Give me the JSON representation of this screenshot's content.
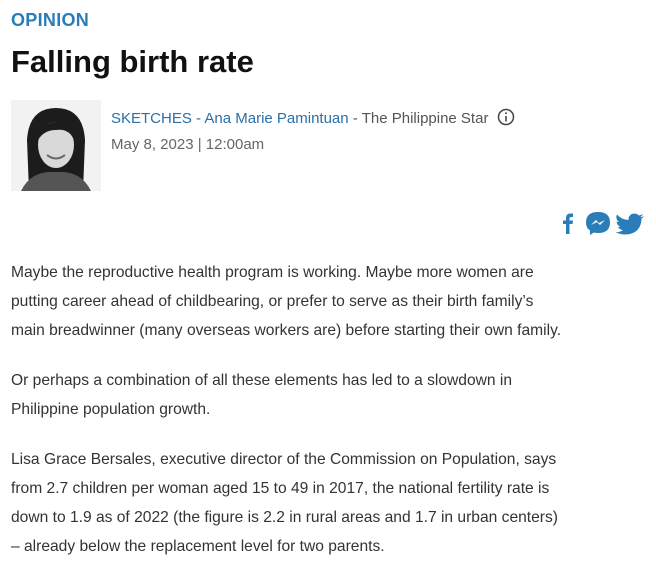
{
  "section": "OPINION",
  "title": "Falling birth rate",
  "byline": {
    "column": "SKETCHES",
    "separator": "-",
    "author": "Ana Marie Pamintuan",
    "publication": "The Philippine Star",
    "date": "May 8, 2023 | 12:00am"
  },
  "paragraphs": [
    [
      "Maybe the reproductive health program is working. Maybe more women are",
      "putting career ahead of childbearing, or prefer to serve as their birth family’s",
      "main breadwinner (many overseas workers are) before starting their own family."
    ],
    [
      "Or perhaps a combination of all these elements has led to a slowdown in",
      "Philippine population growth."
    ],
    [
      "Lisa Grace Bersales, executive director of the Commission on Population, says",
      "from 2.7 children per woman aged 15 to 49 in 2017, the national fertility rate is",
      "down to 1.9 as of 2022 (the figure is 2.2 in rural areas and 1.7 in urban centers)",
      "– already below the replacement level for two parents."
    ]
  ]
}
